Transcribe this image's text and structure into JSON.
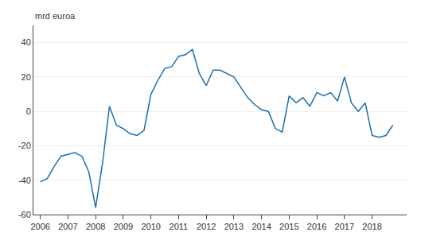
{
  "chart_data": {
    "type": "line",
    "ylabel": "mrd euroa",
    "color": "#1a6faf",
    "x": [
      2006.0,
      2006.25,
      2006.5,
      2006.75,
      2007.0,
      2007.25,
      2007.5,
      2007.75,
      2008.0,
      2008.25,
      2008.5,
      2008.75,
      2009.0,
      2009.25,
      2009.5,
      2009.75,
      2010.0,
      2010.25,
      2010.5,
      2010.75,
      2011.0,
      2011.25,
      2011.5,
      2011.75,
      2012.0,
      2012.25,
      2012.5,
      2012.75,
      2013.0,
      2013.25,
      2013.5,
      2013.75,
      2014.0,
      2014.25,
      2014.5,
      2014.75,
      2015.0,
      2015.25,
      2015.5,
      2015.75,
      2016.0,
      2016.25,
      2016.5,
      2016.75,
      2017.0,
      2017.25,
      2017.5,
      2017.75,
      2018.0,
      2018.25,
      2018.5,
      2018.75
    ],
    "values": [
      -41,
      -39,
      -32,
      -26,
      -25,
      -24,
      -26,
      -35,
      -56,
      -30,
      3,
      -8,
      -10,
      -13,
      -14,
      -11,
      10,
      18,
      25,
      26,
      32,
      33,
      36,
      22,
      15,
      24,
      24,
      22,
      20,
      14,
      8,
      4,
      1,
      0,
      -10,
      -12,
      9,
      5,
      8,
      3,
      11,
      9,
      11,
      6,
      20,
      5,
      0,
      5,
      -14,
      -15,
      -14,
      -8
    ],
    "xlim": [
      2005.75,
      2019.25
    ],
    "xticks": [
      2006,
      2007,
      2008,
      2009,
      2010,
      2011,
      2012,
      2013,
      2014,
      2015,
      2016,
      2017,
      2018
    ],
    "ylim": [
      -60,
      50
    ],
    "yticks": [
      -60,
      -40,
      -20,
      0,
      20,
      40
    ],
    "grid": true
  }
}
